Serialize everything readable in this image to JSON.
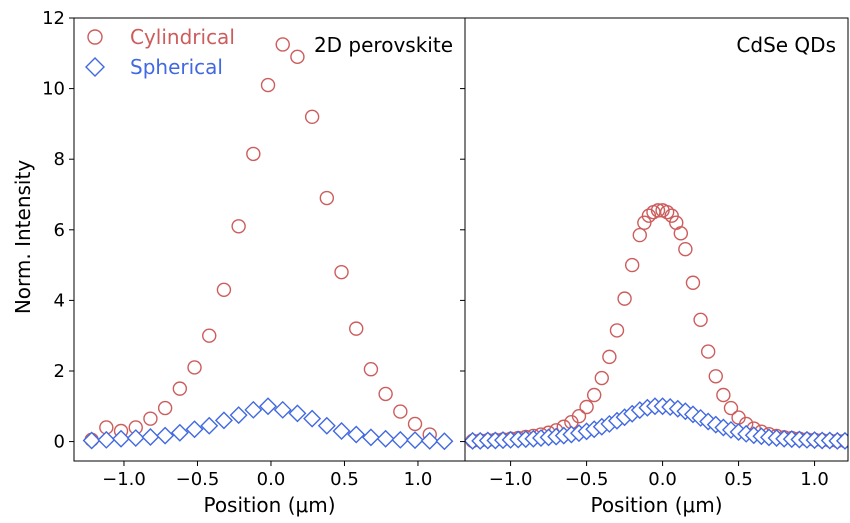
{
  "figure": {
    "ylabel": "Norm. Intensity",
    "colors": {
      "cylindrical": "#CD5C5C",
      "spherical": "#4169E1",
      "axis": "#000000"
    },
    "legend": {
      "placement": "top-left of left panel",
      "entries": [
        {
          "name": "Cylindrical",
          "marker": "circle",
          "color": "#CD5C5C"
        },
        {
          "name": "Spherical",
          "marker": "diamond",
          "color": "#4169E1"
        }
      ]
    }
  },
  "chart_data": [
    {
      "type": "scatter",
      "panel_label": "2D perovskite",
      "xlabel": "Position (μm)",
      "ylabel": "Norm. Intensity",
      "xlim": [
        -1.34,
        1.32
      ],
      "ylim": [
        -0.55,
        12
      ],
      "xticks": [
        -1.0,
        -0.5,
        0.0,
        0.5,
        1.0
      ],
      "xtick_labels": [
        "−1.0",
        "−0.5",
        "0.0",
        "0.5",
        "1.0"
      ],
      "yticks": [
        0,
        2,
        4,
        6,
        8,
        10,
        12
      ],
      "ytick_labels": [
        "0",
        "2",
        "4",
        "6",
        "8",
        "10",
        "12"
      ],
      "series": [
        {
          "name": "Cylindrical",
          "marker": "circle",
          "x": [
            -1.22,
            -1.12,
            -1.02,
            -0.92,
            -0.82,
            -0.72,
            -0.62,
            -0.52,
            -0.42,
            -0.32,
            -0.22,
            -0.12,
            -0.02,
            0.08,
            0.18,
            0.28,
            0.38,
            0.48,
            0.58,
            0.68,
            0.78,
            0.88,
            0.98,
            1.08
          ],
          "y": [
            0.05,
            0.4,
            0.3,
            0.4,
            0.65,
            0.95,
            1.5,
            2.1,
            3.0,
            4.3,
            6.1,
            8.15,
            10.1,
            11.25,
            10.9,
            9.2,
            6.9,
            4.8,
            3.2,
            2.05,
            1.35,
            0.85,
            0.5,
            0.2
          ]
        },
        {
          "name": "Spherical",
          "marker": "diamond",
          "x": [
            -1.22,
            -1.12,
            -1.02,
            -0.92,
            -0.82,
            -0.72,
            -0.62,
            -0.52,
            -0.42,
            -0.32,
            -0.22,
            -0.12,
            -0.02,
            0.08,
            0.18,
            0.28,
            0.38,
            0.48,
            0.58,
            0.68,
            0.78,
            0.88,
            0.98,
            1.08,
            1.18
          ],
          "y": [
            0.03,
            0.05,
            0.08,
            0.1,
            0.13,
            0.17,
            0.25,
            0.35,
            0.45,
            0.6,
            0.75,
            0.9,
            1.0,
            0.9,
            0.8,
            0.65,
            0.45,
            0.3,
            0.2,
            0.12,
            0.08,
            0.05,
            0.04,
            0.02,
            0.01
          ]
        }
      ]
    },
    {
      "type": "scatter",
      "panel_label": "CdSe QDs",
      "xlabel": "Position (μm)",
      "xlim": [
        -1.3,
        1.22
      ],
      "ylim": [
        -0.55,
        12
      ],
      "xticks": [
        -1.0,
        -0.5,
        0.0,
        0.5,
        1.0
      ],
      "xtick_labels": [
        "−1.0",
        "−0.5",
        "0.0",
        "0.5",
        "1.0"
      ],
      "yticks": [
        0,
        2,
        4,
        6,
        8,
        10,
        12
      ],
      "series": [
        {
          "name": "Cylindrical",
          "marker": "circle",
          "x": [
            -1.25,
            -1.2,
            -1.15,
            -1.1,
            -1.05,
            -1.0,
            -0.95,
            -0.9,
            -0.85,
            -0.8,
            -0.75,
            -0.7,
            -0.65,
            -0.6,
            -0.55,
            -0.5,
            -0.45,
            -0.4,
            -0.35,
            -0.3,
            -0.25,
            -0.2,
            -0.15,
            -0.12,
            -0.09,
            -0.06,
            -0.03,
            0.0,
            0.03,
            0.06,
            0.09,
            0.12,
            0.15,
            0.2,
            0.25,
            0.3,
            0.35,
            0.4,
            0.45,
            0.5,
            0.55,
            0.6,
            0.65,
            0.7,
            0.75,
            0.8,
            0.85,
            0.9,
            0.95,
            1.0,
            1.05,
            1.1,
            1.15,
            1.2
          ],
          "y": [
            0.02,
            0.03,
            0.04,
            0.05,
            0.06,
            0.08,
            0.1,
            0.13,
            0.16,
            0.2,
            0.25,
            0.32,
            0.42,
            0.55,
            0.72,
            0.98,
            1.32,
            1.8,
            2.4,
            3.15,
            4.05,
            5.0,
            5.85,
            6.2,
            6.4,
            6.5,
            6.55,
            6.55,
            6.5,
            6.4,
            6.2,
            5.9,
            5.45,
            4.5,
            3.45,
            2.55,
            1.85,
            1.32,
            0.95,
            0.68,
            0.5,
            0.37,
            0.28,
            0.21,
            0.16,
            0.12,
            0.1,
            0.08,
            0.06,
            0.05,
            0.04,
            0.03,
            0.02,
            0.02
          ]
        },
        {
          "name": "Spherical",
          "marker": "diamond",
          "x": [
            -1.25,
            -1.2,
            -1.15,
            -1.1,
            -1.05,
            -1.0,
            -0.95,
            -0.9,
            -0.85,
            -0.8,
            -0.75,
            -0.7,
            -0.65,
            -0.6,
            -0.55,
            -0.5,
            -0.45,
            -0.4,
            -0.35,
            -0.3,
            -0.25,
            -0.2,
            -0.15,
            -0.1,
            -0.05,
            0.0,
            0.05,
            0.1,
            0.15,
            0.2,
            0.25,
            0.3,
            0.35,
            0.4,
            0.45,
            0.5,
            0.55,
            0.6,
            0.65,
            0.7,
            0.75,
            0.8,
            0.85,
            0.9,
            0.95,
            1.0,
            1.05,
            1.1,
            1.15,
            1.2
          ],
          "y": [
            0.02,
            0.02,
            0.03,
            0.03,
            0.04,
            0.05,
            0.06,
            0.07,
            0.08,
            0.1,
            0.12,
            0.14,
            0.17,
            0.2,
            0.24,
            0.29,
            0.35,
            0.42,
            0.5,
            0.59,
            0.69,
            0.79,
            0.89,
            0.96,
            1.0,
            1.0,
            0.98,
            0.93,
            0.86,
            0.77,
            0.67,
            0.57,
            0.48,
            0.4,
            0.33,
            0.27,
            0.22,
            0.18,
            0.15,
            0.12,
            0.1,
            0.08,
            0.07,
            0.06,
            0.05,
            0.04,
            0.03,
            0.03,
            0.02,
            0.02
          ]
        }
      ]
    }
  ]
}
